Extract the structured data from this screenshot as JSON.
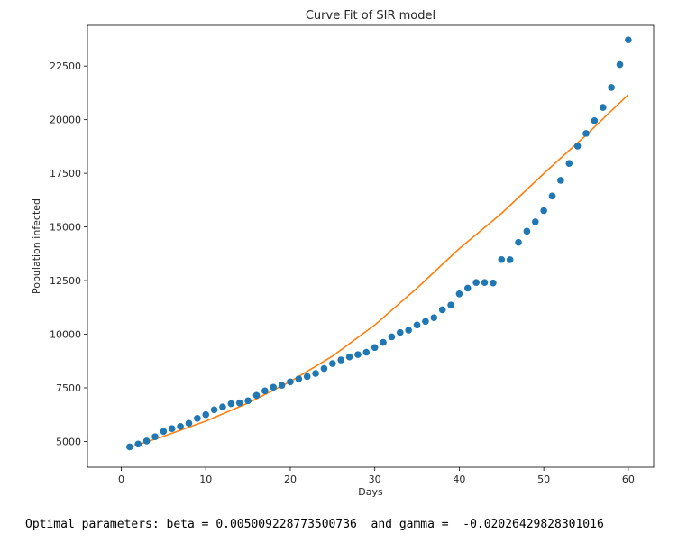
{
  "chart_data": {
    "type": "scatter",
    "title": "Curve Fit of SIR model",
    "xlabel": "Days",
    "ylabel": "Population infected",
    "xlim": [
      -4,
      63
    ],
    "ylim": [
      3800,
      24400
    ],
    "xticks": [
      0,
      10,
      20,
      30,
      40,
      50,
      60
    ],
    "yticks": [
      5000,
      7500,
      10000,
      12500,
      15000,
      17500,
      20000,
      22500
    ],
    "grid": false,
    "series": [
      {
        "kind": "scatter",
        "color": "#1f77b4",
        "x": [
          1,
          2,
          3,
          4,
          5,
          6,
          7,
          8,
          9,
          10,
          11,
          12,
          13,
          14,
          15,
          16,
          17,
          18,
          19,
          20,
          21,
          22,
          23,
          24,
          25,
          26,
          27,
          28,
          29,
          30,
          31,
          32,
          33,
          34,
          35,
          36,
          37,
          38,
          39,
          40,
          41,
          42,
          43,
          44,
          45,
          46,
          47,
          48,
          49,
          50,
          51,
          52,
          53,
          54,
          55,
          56,
          57,
          58,
          59,
          60
        ],
        "y": [
          4750,
          4880,
          5020,
          5220,
          5470,
          5600,
          5700,
          5850,
          6080,
          6250,
          6480,
          6610,
          6760,
          6800,
          6900,
          7150,
          7360,
          7530,
          7620,
          7780,
          7920,
          8030,
          8170,
          8400,
          8630,
          8800,
          8940,
          9050,
          9160,
          9380,
          9620,
          9880,
          10080,
          10190,
          10430,
          10600,
          10770,
          11140,
          11360,
          11880,
          12150,
          12410,
          12410,
          12390,
          13480,
          13470,
          14280,
          14800,
          15240,
          15760,
          16440,
          17170,
          17960,
          18770,
          19360,
          19950,
          20570,
          21500,
          22570,
          23720
        ]
      },
      {
        "kind": "line",
        "color": "#ff7f0e",
        "x": [
          1,
          5,
          10,
          15,
          20,
          25,
          30,
          35,
          40,
          45,
          50,
          55,
          60
        ],
        "y": [
          4720,
          5240,
          5950,
          6790,
          7790,
          8980,
          10430,
          12150,
          13990,
          15630,
          17490,
          19280,
          21170
        ]
      }
    ]
  },
  "output": {
    "text": "Optimal parameters: beta = 0.005009228773500736  and gamma =  -0.02026429828301016"
  }
}
